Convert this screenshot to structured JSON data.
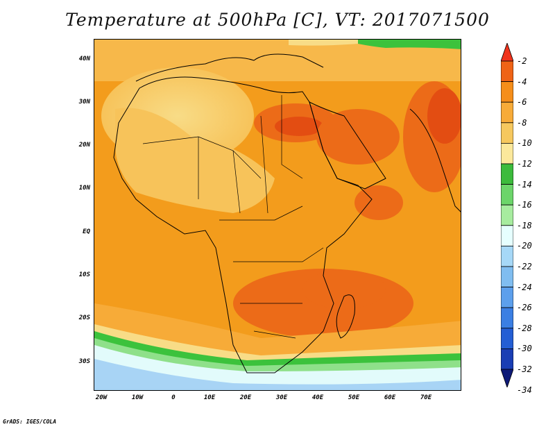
{
  "title": "Temperature at 500hPa [C], VT: 2017071500",
  "credit": "GrADS: IGES/COLA",
  "map": {
    "lat_labels": [
      "40N",
      "30N",
      "20N",
      "10N",
      "EQ",
      "10S",
      "20S",
      "30S"
    ],
    "lon_labels": [
      "20W",
      "10W",
      "0",
      "10E",
      "20E",
      "30E",
      "40E",
      "50E",
      "60E",
      "70E"
    ],
    "colors": {
      "ocean_warm": "#f39c1c",
      "land_cool": "#f7c35a",
      "land_pale": "#f8dc87",
      "hot": "#ec6b18",
      "hot2": "#e34d12",
      "green": "#3cc23c",
      "light_green": "#8fe08a",
      "pale_green": "#c4f4bc",
      "cyan_pale": "#e2fbfb",
      "blue_pale": "#a8d4f5",
      "blue_mid": "#7ab6ef",
      "border": "#000000"
    }
  },
  "colorbar": {
    "labels": [
      "-2",
      "-4",
      "-6",
      "-8",
      "-10",
      "-12",
      "-14",
      "-16",
      "-18",
      "-20",
      "-22",
      "-24",
      "-26",
      "-28",
      "-30",
      "-32",
      "-34"
    ],
    "colors": [
      "#f0331c",
      "#ef6316",
      "#f58e1a",
      "#f7ab38",
      "#f6c85e",
      "#fbe89b",
      "#3cbb3c",
      "#6cd56a",
      "#a7ec9f",
      "#e6ffff",
      "#a6d8f7",
      "#80bdf0",
      "#5c9fec",
      "#3b7fe3",
      "#245ed4",
      "#1a3eb4",
      "#0e1a78"
    ]
  }
}
